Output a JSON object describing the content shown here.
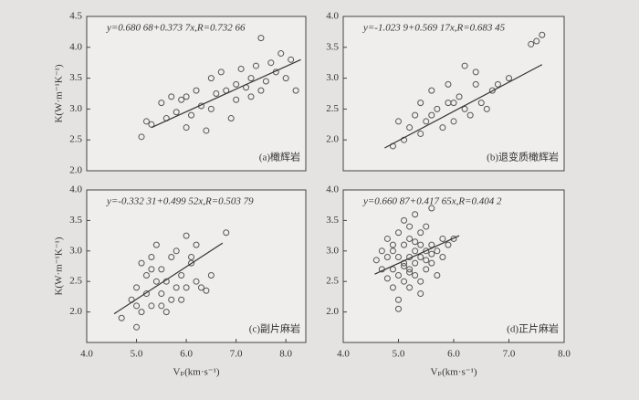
{
  "chart_data": [
    {
      "type": "scatter",
      "annotation": "y=0.680 68+0.373 7x,R=0.732 66",
      "label": "(a)橄辉岩",
      "ylabel": "K(W·m⁻¹K⁻¹)",
      "color": "#555555",
      "xlim": [
        4.0,
        8.4
      ],
      "ylim": [
        2.0,
        4.5
      ],
      "yticks": [
        {
          "value": 2.0,
          "label": "2.0"
        },
        {
          "value": 2.5,
          "label": "2.5"
        },
        {
          "value": 3.0,
          "label": "3.0"
        },
        {
          "value": 3.5,
          "label": "3.5"
        },
        {
          "value": 4.0,
          "label": "4.0"
        },
        {
          "value": 4.5,
          "label": "4.5"
        }
      ],
      "x": [
        5.1,
        5.2,
        5.3,
        5.5,
        5.6,
        5.7,
        5.8,
        5.9,
        6.0,
        6.0,
        6.1,
        6.2,
        6.3,
        6.4,
        6.5,
        6.5,
        6.6,
        6.7,
        6.8,
        6.9,
        7.0,
        7.0,
        7.1,
        7.2,
        7.3,
        7.3,
        7.4,
        7.5,
        7.5,
        7.6,
        7.7,
        7.8,
        7.9,
        8.0,
        8.1,
        8.2
      ],
      "y": [
        2.55,
        2.8,
        2.75,
        3.1,
        2.85,
        3.2,
        2.95,
        3.15,
        3.2,
        2.7,
        2.9,
        3.3,
        3.05,
        2.65,
        3.5,
        3.0,
        3.25,
        3.6,
        3.3,
        2.85,
        3.4,
        3.15,
        3.65,
        3.35,
        3.2,
        3.5,
        3.7,
        3.3,
        4.15,
        3.45,
        3.75,
        3.6,
        3.9,
        3.5,
        3.8,
        3.3
      ],
      "fit_x": [
        5.3,
        8.3
      ],
      "fit_y": [
        2.7,
        3.8
      ]
    },
    {
      "type": "scatter",
      "annotation": "y=-1.023 9+0.569 17x,R=0.683 45",
      "label": "(b)退变质橄辉岩",
      "color": "#555555",
      "xlim": [
        4.0,
        8.0
      ],
      "ylim": [
        1.5,
        4.0
      ],
      "yticks": [
        {
          "value": 2.0,
          "label": "2.0"
        },
        {
          "value": 2.5,
          "label": "2.5"
        },
        {
          "value": 3.0,
          "label": "3.0"
        },
        {
          "value": 3.5,
          "label": "3.5"
        },
        {
          "value": 4.0,
          "label": "4.0"
        }
      ],
      "x": [
        4.9,
        5.0,
        5.1,
        5.2,
        5.3,
        5.4,
        5.4,
        5.5,
        5.6,
        5.7,
        5.8,
        5.9,
        6.0,
        6.0,
        6.1,
        6.2,
        6.2,
        6.3,
        6.4,
        6.5,
        6.6,
        6.7,
        6.8,
        7.0,
        7.4,
        7.5,
        7.6,
        5.6,
        6.4,
        5.9
      ],
      "y": [
        1.9,
        2.3,
        2.0,
        2.2,
        2.4,
        2.1,
        2.6,
        2.3,
        2.8,
        2.5,
        2.2,
        2.9,
        2.6,
        2.3,
        2.7,
        3.2,
        2.5,
        2.4,
        2.9,
        2.6,
        2.5,
        2.8,
        2.9,
        3.0,
        3.55,
        3.6,
        3.7,
        2.4,
        3.1,
        2.6
      ],
      "fit_x": [
        4.75,
        7.6
      ],
      "fit_y": [
        1.87,
        3.22
      ]
    },
    {
      "type": "scatter",
      "annotation": "y=-0.332 31+0.499 52x,R=0.503 79",
      "label": "(c)副片麻岩",
      "ylabel": "K(W·m⁻¹K⁻¹)",
      "xlabel": "Vₚ(km·s⁻¹)",
      "color": "#555555",
      "xlim": [
        4.0,
        8.4
      ],
      "ylim": [
        1.5,
        4.0
      ],
      "xticks": [
        {
          "value": 4.0,
          "label": "4.0"
        },
        {
          "value": 5.0,
          "label": "5.0"
        },
        {
          "value": 6.0,
          "label": "6.0"
        },
        {
          "value": 7.0,
          "label": "7.0"
        },
        {
          "value": 8.0,
          "label": "8.0"
        }
      ],
      "yticks": [
        {
          "value": 2.0,
          "label": "2.0"
        },
        {
          "value": 2.5,
          "label": "2.5"
        },
        {
          "value": 3.0,
          "label": "3.0"
        },
        {
          "value": 3.5,
          "label": "3.5"
        },
        {
          "value": 4.0,
          "label": "4.0"
        }
      ],
      "x": [
        4.7,
        4.9,
        5.0,
        5.0,
        5.1,
        5.2,
        5.2,
        5.3,
        5.3,
        5.4,
        5.4,
        5.5,
        5.5,
        5.6,
        5.7,
        5.7,
        5.8,
        5.9,
        6.0,
        6.0,
        6.1,
        6.2,
        6.3,
        6.5,
        6.8,
        5.1,
        5.5,
        5.8,
        6.1,
        6.4,
        5.0,
        5.3,
        5.6,
        5.9,
        6.2
      ],
      "y": [
        1.9,
        2.2,
        1.75,
        2.4,
        2.0,
        2.6,
        2.3,
        2.9,
        2.1,
        2.5,
        3.1,
        2.3,
        2.7,
        2.5,
        2.9,
        2.2,
        3.0,
        2.6,
        3.25,
        2.4,
        2.8,
        2.5,
        2.4,
        2.6,
        3.3,
        2.8,
        2.1,
        2.4,
        2.9,
        2.35,
        2.1,
        2.7,
        2.0,
        2.2,
        3.1
      ],
      "fit_x": [
        4.55,
        6.73
      ],
      "fit_y": [
        1.97,
        3.13
      ]
    },
    {
      "type": "scatter",
      "annotation": "y=0.660 87+0.417 65x,R=0.404 2",
      "label": "(d)正片麻岩",
      "xlabel": "Vₚ(km·s⁻¹)",
      "color": "#555555",
      "xlim": [
        4.0,
        8.0
      ],
      "ylim": [
        1.5,
        4.0
      ],
      "xticks": [
        {
          "value": 4.0,
          "label": "4.0"
        },
        {
          "value": 5.0,
          "label": "5.0"
        },
        {
          "value": 6.0,
          "label": "6.0"
        },
        {
          "value": 7.0,
          "label": "7.0"
        },
        {
          "value": 8.0,
          "label": "8.0"
        }
      ],
      "yticks": [
        {
          "value": 2.0,
          "label": "2.0"
        },
        {
          "value": 2.5,
          "label": "2.5"
        },
        {
          "value": 3.0,
          "label": "3.0"
        },
        {
          "value": 3.5,
          "label": "3.5"
        },
        {
          "value": 4.0,
          "label": "4.0"
        }
      ],
      "x": [
        4.6,
        4.7,
        4.7,
        4.8,
        4.8,
        4.9,
        4.9,
        4.9,
        5.0,
        5.0,
        5.0,
        5.0,
        5.1,
        5.1,
        5.1,
        5.1,
        5.2,
        5.2,
        5.2,
        5.2,
        5.3,
        5.3,
        5.3,
        5.3,
        5.4,
        5.4,
        5.4,
        5.4,
        5.5,
        5.5,
        5.5,
        5.6,
        5.6,
        5.6,
        5.7,
        5.7,
        5.8,
        5.8,
        5.9,
        6.0,
        4.8,
        5.0,
        5.2,
        5.4,
        5.6,
        5.1,
        5.3,
        5.5,
        4.9,
        5.2
      ],
      "y": [
        2.85,
        2.7,
        3.0,
        2.55,
        2.9,
        3.1,
        2.7,
        2.4,
        2.9,
        3.3,
        2.6,
        2.2,
        2.8,
        3.1,
        2.5,
        3.5,
        2.9,
        2.7,
        3.2,
        2.4,
        3.0,
        2.6,
        3.6,
        2.8,
        3.1,
        2.9,
        2.5,
        3.3,
        3.0,
        2.7,
        3.4,
        3.1,
        2.8,
        3.7,
        3.0,
        2.6,
        3.2,
        2.9,
        3.1,
        3.2,
        3.2,
        2.05,
        3.4,
        2.3,
        2.95,
        2.75,
        3.15,
        2.85,
        3.0,
        2.65
      ],
      "fit_x": [
        4.57,
        6.1
      ],
      "fit_y": [
        2.62,
        3.25
      ]
    }
  ]
}
